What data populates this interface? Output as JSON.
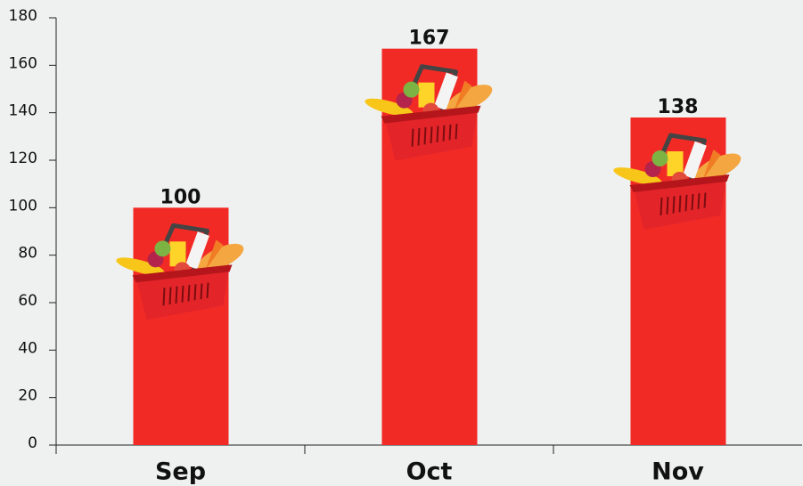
{
  "chart_data": {
    "type": "bar",
    "categories": [
      "Sep",
      "Oct",
      "Nov"
    ],
    "values": [
      100,
      167,
      138
    ],
    "color": "#f22a26",
    "ylim": [
      0,
      180
    ],
    "yticks": [
      0,
      20,
      40,
      60,
      80,
      100,
      120,
      140,
      160,
      180
    ]
  }
}
